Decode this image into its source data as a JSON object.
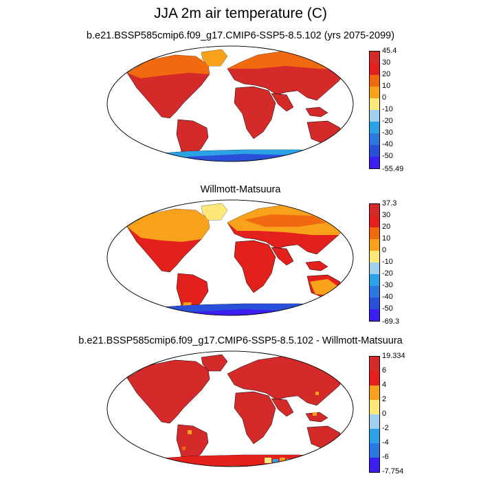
{
  "title": "JJA 2m air temperature (C)",
  "panels": [
    {
      "subtitle": "b.e21.BSSP585cmip6.f09_g17.CMIP6-SSP5-8.5.102 (yrs 2075-2099)",
      "colorbar": {
        "labels": [
          "45.4",
          "30",
          "20",
          "10",
          "0",
          "-10",
          "-20",
          "-30",
          "-40",
          "-50",
          "-55.49"
        ],
        "colors": [
          "#d42a2a",
          "#e3201c",
          "#f26a10",
          "#f7a21a",
          "#fde87a",
          "#9fd0ee",
          "#2ba2e6",
          "#2b79e0",
          "#2a4fd8",
          "#3a1ff0"
        ]
      }
    },
    {
      "subtitle": "Willmott-Matsuura",
      "colorbar": {
        "labels": [
          "37.3",
          "30",
          "20",
          "10",
          "0",
          "-10",
          "-20",
          "-30",
          "-40",
          "-50",
          "-69.3"
        ],
        "colors": [
          "#d42a2a",
          "#e3201c",
          "#f26a10",
          "#f7a21a",
          "#fde87a",
          "#9fd0ee",
          "#2ba2e6",
          "#2b79e0",
          "#2a4fd8",
          "#3a1ff0"
        ]
      }
    },
    {
      "subtitle": "b.e21.BSSP585cmip6.f09_g17.CMIP6-SSP5-8.5.102 - Willmott-Matsuura",
      "colorbar": {
        "labels": [
          "19.334",
          "6",
          "4",
          "2",
          "0",
          "-2",
          "-4",
          "-6",
          "-7.754"
        ],
        "colors": [
          "#d42a2a",
          "#e3201c",
          "#f7a21a",
          "#fde87a",
          "#9fd0ee",
          "#2ba2e6",
          "#2b79e0",
          "#3a1ff0"
        ]
      }
    }
  ]
}
